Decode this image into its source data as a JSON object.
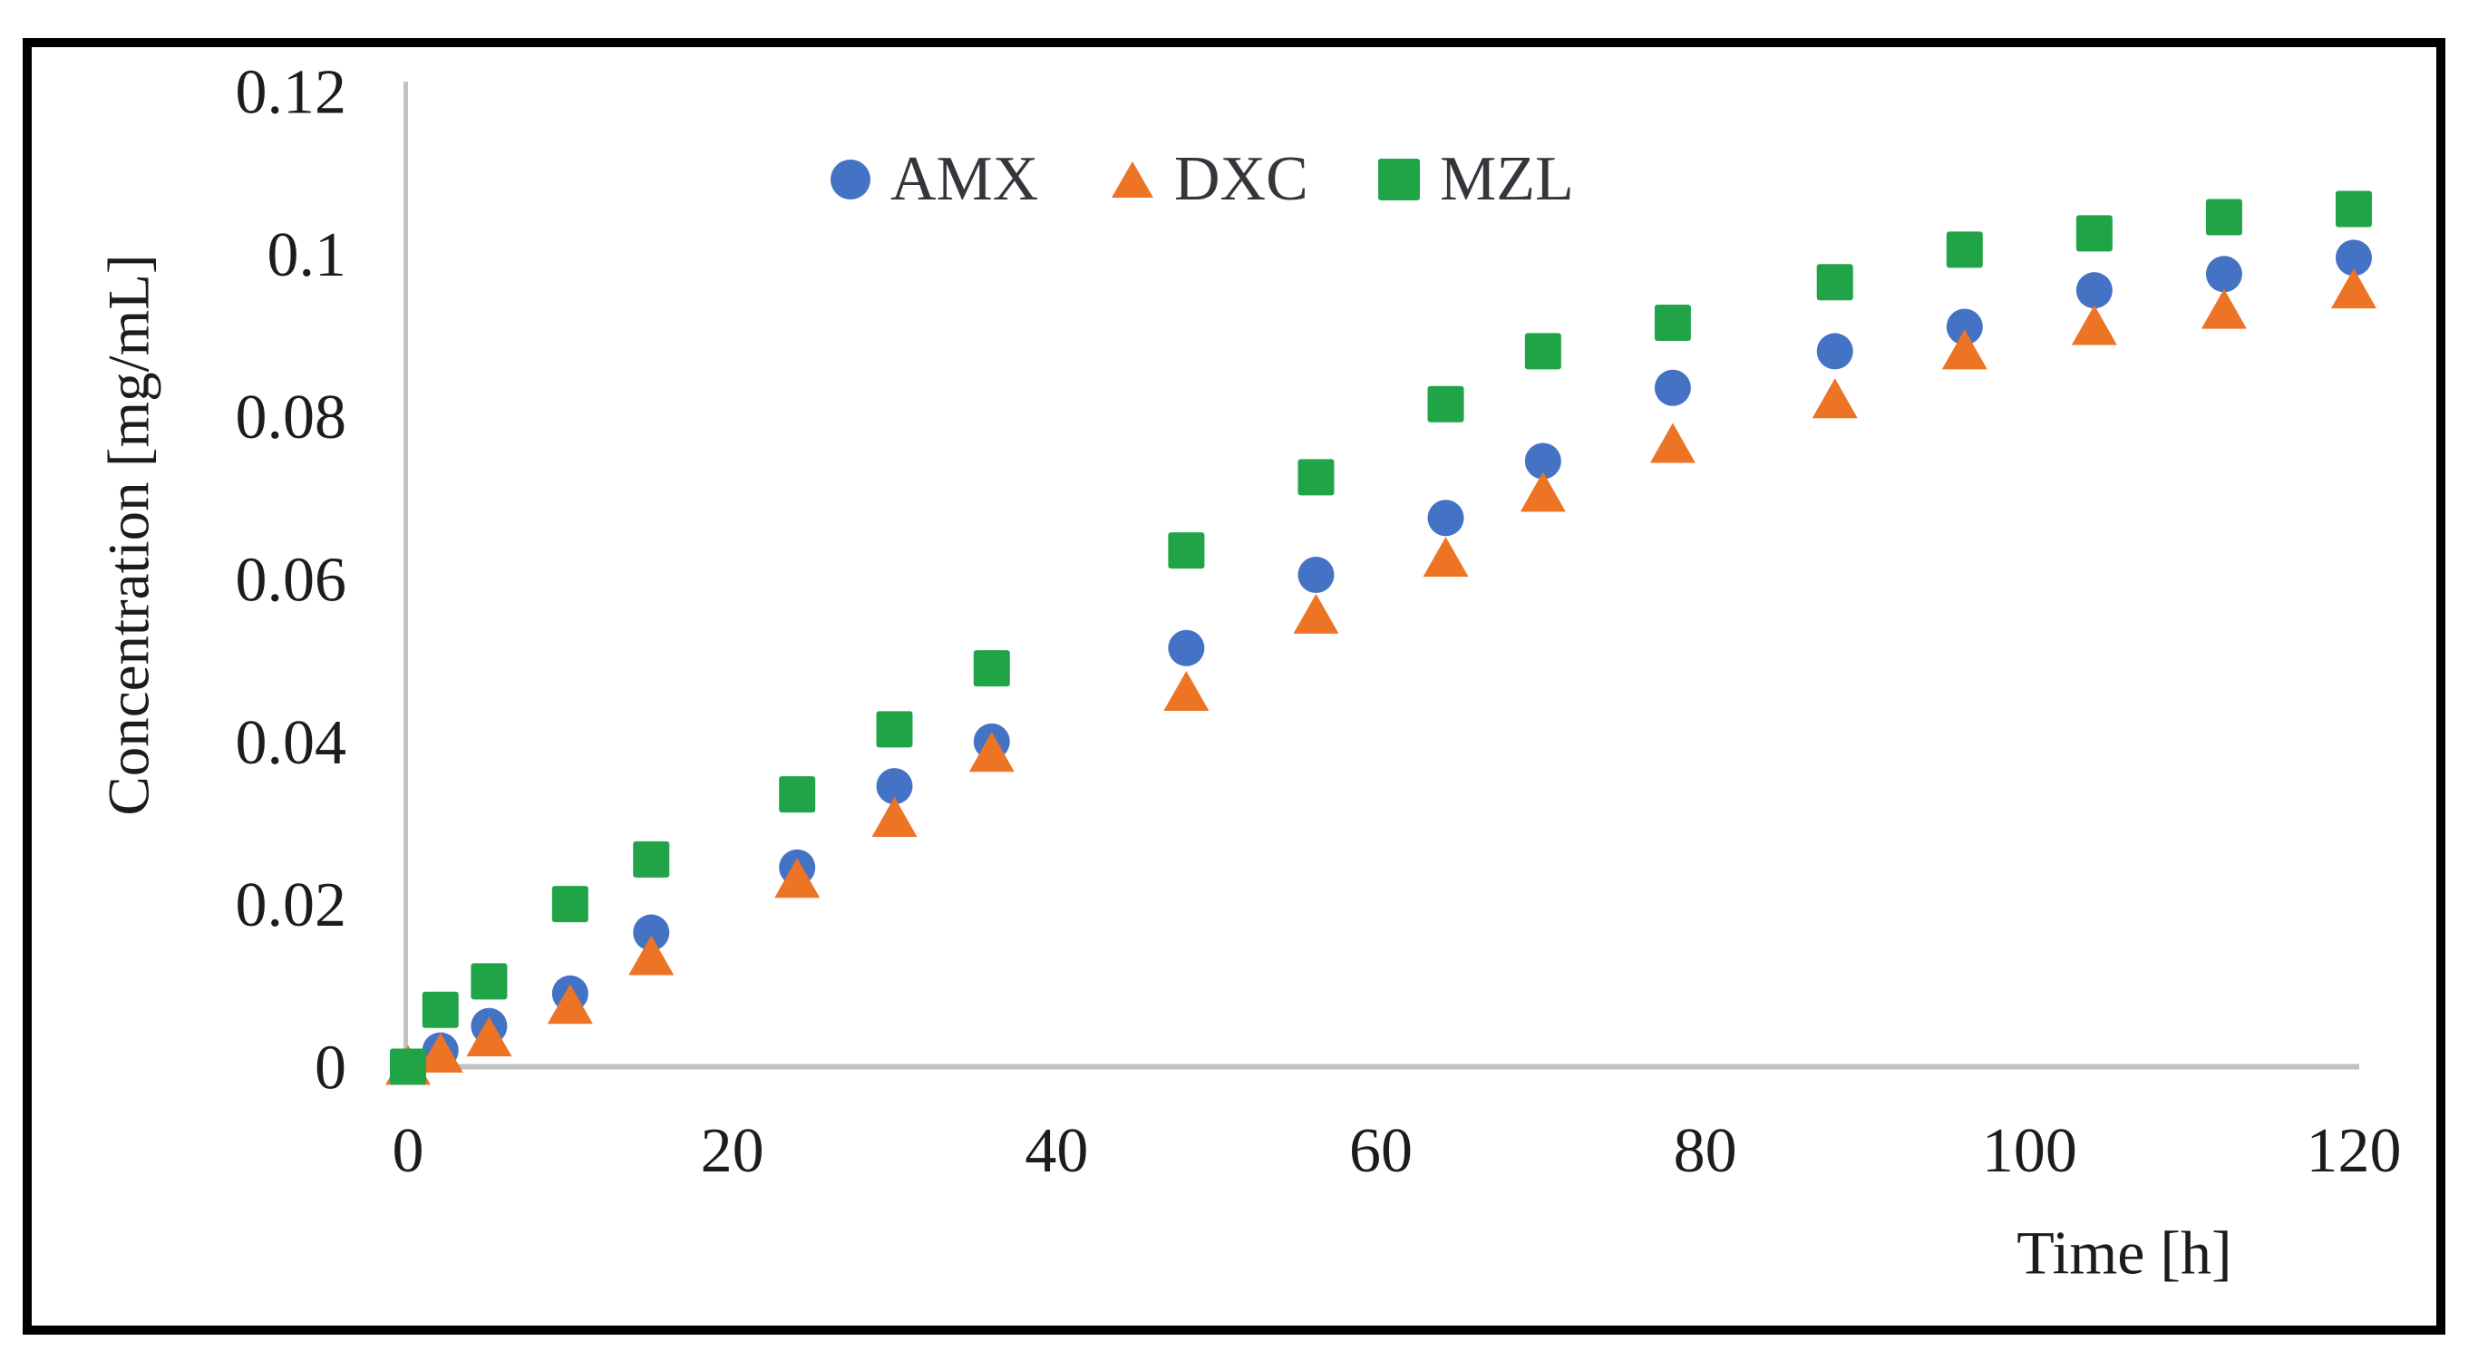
{
  "figure": {
    "background": "#ffffff",
    "border_color": "#000000"
  },
  "chart_data": {
    "type": "scatter",
    "title": "",
    "xlabel": "Time [h]",
    "ylabel": "Concentration [mg/mL]",
    "xlim": [
      0,
      120
    ],
    "ylim": [
      0,
      0.12
    ],
    "grid": false,
    "legend_position": "top-center",
    "axis_color": "#c2c2c2",
    "text_color": "#1c1c20",
    "x": [
      0,
      2,
      5,
      10,
      15,
      24,
      30,
      36,
      48,
      56,
      64,
      70,
      78,
      88,
      96,
      104,
      112,
      120
    ],
    "series": [
      {
        "name": "AMX",
        "marker": "circle",
        "color": "#4472C4",
        "values": [
          0,
          0.002,
          0.005,
          0.009,
          0.0165,
          0.0245,
          0.0345,
          0.04,
          0.0515,
          0.0605,
          0.0675,
          0.0745,
          0.0835,
          0.088,
          0.091,
          0.0955,
          0.0975,
          0.0995
        ]
      },
      {
        "name": "DXC",
        "marker": "triangle",
        "color": "#ED7425",
        "values": [
          0,
          0.0015,
          0.0035,
          0.0075,
          0.0135,
          0.023,
          0.0305,
          0.0385,
          0.046,
          0.0555,
          0.0625,
          0.0705,
          0.0765,
          0.082,
          0.088,
          0.091,
          0.093,
          0.0955
        ]
      },
      {
        "name": "MZL",
        "marker": "square",
        "color": "#21A447",
        "values": [
          0,
          0.007,
          0.0105,
          0.02,
          0.0255,
          0.0335,
          0.0415,
          0.049,
          0.0635,
          0.0725,
          0.0815,
          0.088,
          0.0915,
          0.0965,
          0.1005,
          0.1025,
          0.1045,
          0.1055
        ]
      }
    ],
    "x_ticks": {
      "values": [
        0,
        20,
        40,
        60,
        80,
        100,
        120
      ],
      "labels": [
        "0",
        "20",
        "40",
        "60",
        "80",
        "100",
        "120"
      ]
    },
    "y_ticks": {
      "values": [
        0,
        0.02,
        0.04,
        0.06,
        0.08,
        0.1,
        0.12
      ],
      "labels": [
        "0",
        "0.02",
        "0.04",
        "0.06",
        "0.08",
        "0.1",
        "0.12"
      ]
    }
  }
}
